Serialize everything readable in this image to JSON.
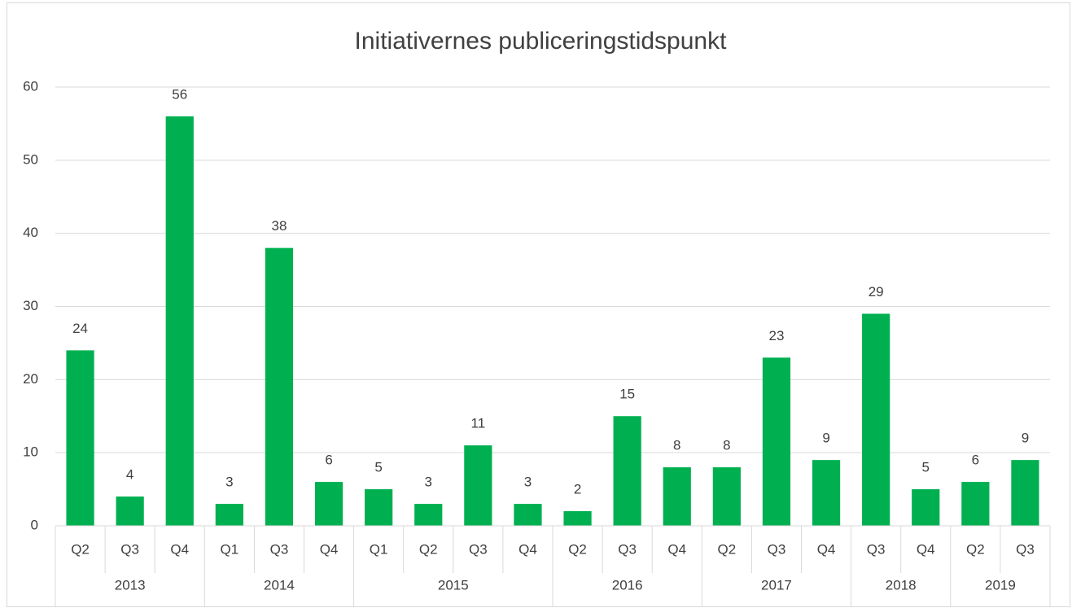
{
  "chart_data": {
    "type": "bar",
    "title": "Initiativernes publiceringstidspunkt",
    "groups": [
      {
        "label": "2013",
        "categories": [
          "Q2",
          "Q3",
          "Q4"
        ]
      },
      {
        "label": "2014",
        "categories": [
          "Q1",
          "Q3",
          "Q4"
        ]
      },
      {
        "label": "2015",
        "categories": [
          "Q1",
          "Q2",
          "Q3",
          "Q4"
        ]
      },
      {
        "label": "2016",
        "categories": [
          "Q2",
          "Q3",
          "Q4"
        ]
      },
      {
        "label": "2017",
        "categories": [
          "Q2",
          "Q3",
          "Q4"
        ]
      },
      {
        "label": "2018",
        "categories": [
          "Q3",
          "Q4"
        ]
      },
      {
        "label": "2019",
        "categories": [
          "Q2",
          "Q3"
        ]
      }
    ],
    "values": [
      24,
      4,
      56,
      3,
      38,
      6,
      5,
      3,
      11,
      3,
      2,
      15,
      8,
      8,
      23,
      9,
      29,
      5,
      6,
      9
    ],
    "color": "#00b050",
    "ylim": [
      0,
      60
    ],
    "yticks": [
      0,
      10,
      20,
      30,
      40,
      50,
      60
    ],
    "grid": true
  }
}
